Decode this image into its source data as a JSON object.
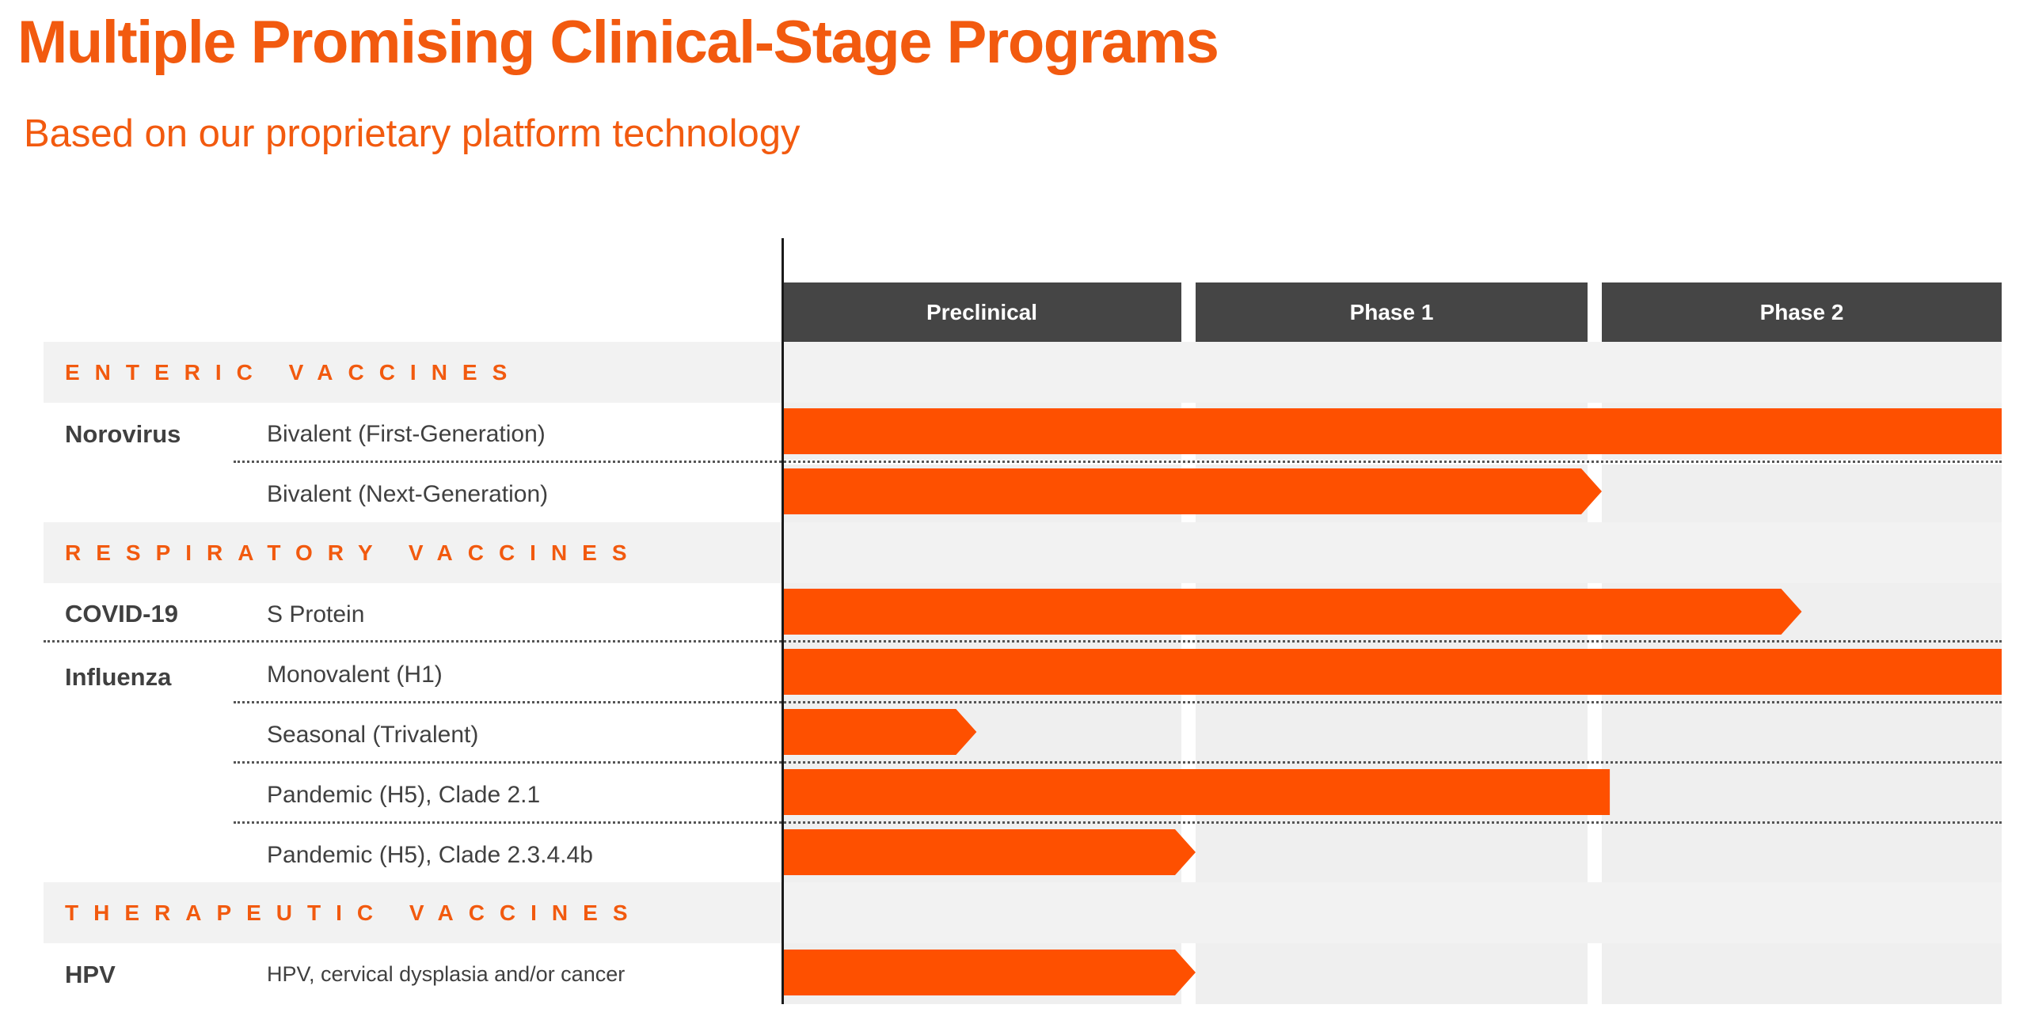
{
  "header": {
    "title": "Multiple Promising Clinical-Stage Programs",
    "subtitle": "Based on our proprietary platform technology"
  },
  "stages": [
    "Preclinical",
    "Phase 1",
    "Phase 2"
  ],
  "categories": {
    "enteric": "ENTERIC VACCINES",
    "respiratory": "RESPIRATORY VACCINES",
    "therapeutic": "THERAPEUTIC VACCINES"
  },
  "groups": {
    "norovirus": "Norovirus",
    "covid": "COVID-19",
    "influenza": "Influenza",
    "hpv": "HPV"
  },
  "programs": [
    {
      "label": "Bivalent (First-Generation)",
      "progress": 3.0,
      "arrow": false
    },
    {
      "label": "Bivalent (Next-Generation)",
      "progress": 2.0,
      "arrow": true
    },
    {
      "label": "S Protein",
      "progress": 2.5,
      "arrow": true
    },
    {
      "label": "Monovalent (H1)",
      "progress": 3.0,
      "arrow": false
    },
    {
      "label": "Seasonal (Trivalent)",
      "progress": 0.47,
      "arrow": true
    },
    {
      "label": "Pandemic (H5), Clade 2.1",
      "progress": 2.02,
      "arrow": false
    },
    {
      "label": "Pandemic (H5), Clade 2.3.4.4b",
      "progress": 1.0,
      "arrow": true
    },
    {
      "label": "HPV, cervical dysplasia and/or cancer",
      "progress": 1.0,
      "arrow": true
    }
  ],
  "colors": {
    "accent": "#f25a0f",
    "bar": "#fe5000",
    "stage_header": "#454545",
    "band": "#f2f2f2",
    "text": "#404040"
  }
}
